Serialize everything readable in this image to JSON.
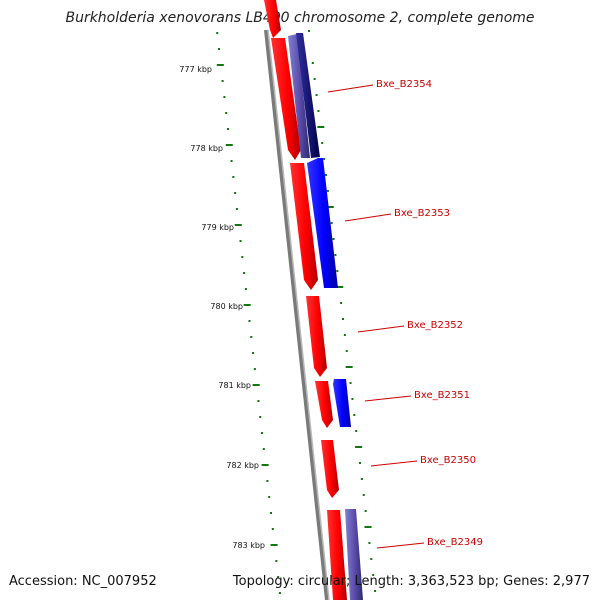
{
  "title": "Burkholderia xenovorans LB400 chromosome 2, complete genome",
  "footer": {
    "accession": "Accession: NC_007952",
    "info": "Topology: circular; Length: 3,363,523 bp; Genes: 2,977"
  },
  "colors": {
    "forward_strand": "#ff0000",
    "reverse_strand": "#0000ff",
    "tick": "#117711",
    "label": "#cc0000",
    "backbone": "#808080"
  },
  "scale_labels": [
    "777 kbp",
    "778 kbp",
    "779 kbp",
    "780 kbp",
    "781 kbp",
    "782 kbp",
    "783 kbp"
  ],
  "genes": [
    {
      "label": "Bxe_B2354",
      "strand": "reverse"
    },
    {
      "label": "Bxe_B2353",
      "strand": "reverse"
    },
    {
      "label": "Bxe_B2352",
      "strand": "forward"
    },
    {
      "label": "Bxe_B2351",
      "strand": "reverse"
    },
    {
      "label": "Bxe_B2350",
      "strand": "forward"
    },
    {
      "label": "Bxe_B2349",
      "strand": "reverse"
    }
  ]
}
